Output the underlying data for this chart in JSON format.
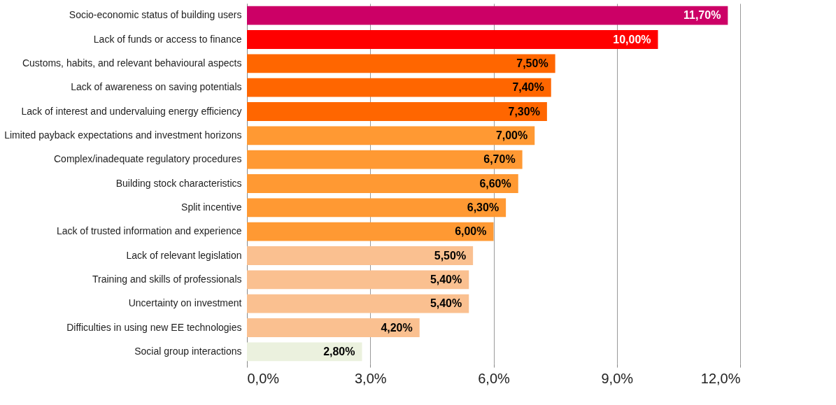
{
  "chart_data": {
    "type": "bar",
    "orientation": "horizontal",
    "categories": [
      "Socio-economic status of building users",
      "Lack of funds or access to finance",
      "Customs, habits, and relevant behavioural aspects",
      "Lack of awareness on saving potentials",
      "Lack of interest and undervaluing energy efficiency",
      "Limited payback expectations and investment horizons",
      "Complex/inadequate regulatory procedures",
      "Building stock characteristics",
      "Split incentive",
      "Lack of trusted information and experience",
      "Lack of relevant legislation",
      "Training and skills of professionals",
      "Uncertainty on investment",
      "Difficulties in using new EE technologies",
      "Social group interactions"
    ],
    "values": [
      11.7,
      10.0,
      7.5,
      7.4,
      7.3,
      7.0,
      6.7,
      6.6,
      6.3,
      6.0,
      5.5,
      5.4,
      5.4,
      4.2,
      2.8
    ],
    "value_labels": [
      "11,70%",
      "10,00%",
      "7,50%",
      "7,40%",
      "7,30%",
      "7,00%",
      "6,70%",
      "6,60%",
      "6,30%",
      "6,00%",
      "5,50%",
      "5,40%",
      "5,40%",
      "4,20%",
      "2,80%"
    ],
    "colors": [
      "#cc0066",
      "#ff0000",
      "#ff6600",
      "#ff6600",
      "#ff6600",
      "#ff9933",
      "#ff9933",
      "#ff9933",
      "#ff9933",
      "#ff9933",
      "#fac090",
      "#fac090",
      "#fac090",
      "#fac090",
      "#ebf1de"
    ],
    "xlim": [
      0,
      12
    ],
    "xticks": [
      {
        "value": 0,
        "label": "0,0%"
      },
      {
        "value": 3,
        "label": "3,0%"
      },
      {
        "value": 6,
        "label": "6,0%"
      },
      {
        "value": 9,
        "label": "9,0%"
      },
      {
        "value": 12,
        "label": "12,0%"
      }
    ],
    "grid": "x"
  }
}
